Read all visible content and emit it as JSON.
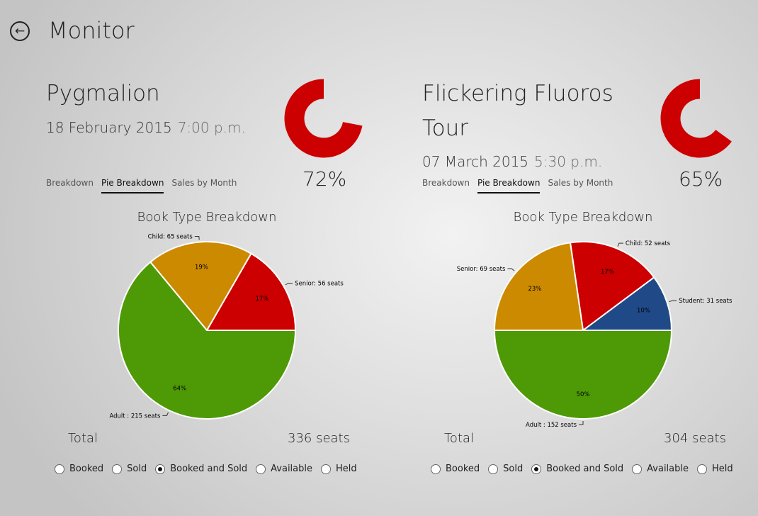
{
  "header": {
    "title": "Monitor",
    "back_icon": "back-arrow-icon"
  },
  "tabs": [
    "Breakdown",
    "Pie Breakdown",
    "Sales by Month"
  ],
  "selected_tab": "Pie Breakdown",
  "radio_options": [
    "Booked",
    "Sold",
    "Booked and Sold",
    "Available",
    "Held"
  ],
  "selected_radio": "Booked and Sold",
  "total_label": "Total",
  "events": [
    {
      "name": "Pygmalion",
      "date": "18 February 2015",
      "time": "7:00 p.m.",
      "gauge_pct": 72,
      "gauge_label": "72%",
      "total_value": "336 seats"
    },
    {
      "name": "Flickering Fluoros Tour",
      "date": "07 March 2015",
      "time": "5:30 p.m.",
      "gauge_pct": 65,
      "gauge_label": "65%",
      "total_value": "304 seats"
    }
  ],
  "colors": {
    "gauge": "#cc0000",
    "Adult": "#4e9a06",
    "Child_left": "#cc8a00",
    "Senior_left": "#cc0000",
    "Student": "#204a87",
    "Child_right": "#cc0000",
    "Senior_right": "#cc8a00"
  },
  "chart_data": [
    {
      "type": "pie",
      "title": "Book Type Breakdown",
      "slices": [
        {
          "label": "Senior: 56 seats",
          "value": 56,
          "pct": "17%",
          "color": "#cc0000"
        },
        {
          "label": "Child: 65 seats",
          "value": 65,
          "pct": "19%",
          "color": "#cc8a00"
        },
        {
          "label": "Adult : 215 seats",
          "value": 215,
          "pct": "64%",
          "color": "#4e9a06"
        }
      ]
    },
    {
      "type": "pie",
      "title": "Book Type Breakdown",
      "slices": [
        {
          "label": "Student: 31 seats",
          "value": 31,
          "pct": "10%",
          "color": "#204a87"
        },
        {
          "label": "Child: 52 seats",
          "value": 52,
          "pct": "17%",
          "color": "#cc0000"
        },
        {
          "label": "Senior: 69 seats",
          "value": 69,
          "pct": "23%",
          "color": "#cc8a00"
        },
        {
          "label": "Adult : 152 seats",
          "value": 152,
          "pct": "50%",
          "color": "#4e9a06"
        }
      ]
    }
  ]
}
